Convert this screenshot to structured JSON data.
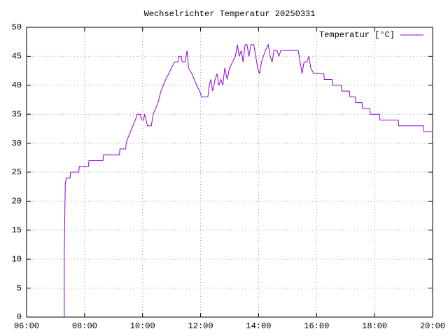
{
  "chart_data": {
    "type": "line",
    "title": "Wechselrichter Temperatur 20250331",
    "x": [
      "07:18",
      "07:18",
      "07:20",
      "07:22",
      "07:30",
      "07:31",
      "07:48",
      "07:49",
      "08:08",
      "08:09",
      "08:38",
      "08:39",
      "09:12",
      "09:13",
      "09:25",
      "09:26",
      "09:30",
      "09:35",
      "09:40",
      "09:45",
      "09:49",
      "09:55",
      "09:58",
      "10:02",
      "10:04",
      "10:07",
      "10:10",
      "10:18",
      "10:22",
      "10:27",
      "10:32",
      "10:38",
      "10:43",
      "10:48",
      "10:54",
      "11:00",
      "11:06",
      "11:13",
      "11:15",
      "11:20",
      "11:22",
      "11:28",
      "11:32",
      "11:35",
      "11:42",
      "11:47",
      "11:52",
      "11:58",
      "12:02",
      "12:15",
      "12:18",
      "12:21",
      "12:25",
      "12:30",
      "12:34",
      "12:38",
      "12:42",
      "12:46",
      "12:50",
      "12:55",
      "13:00",
      "13:06",
      "13:12",
      "13:16",
      "13:20",
      "13:24",
      "13:28",
      "13:32",
      "13:36",
      "13:40",
      "13:44",
      "13:50",
      "13:54",
      "13:58",
      "14:02",
      "14:06",
      "14:10",
      "14:14",
      "14:20",
      "14:24",
      "14:28",
      "14:32",
      "14:38",
      "14:42",
      "14:46",
      "15:22",
      "15:26",
      "15:30",
      "15:34",
      "15:40",
      "15:44",
      "15:48",
      "15:54",
      "16:15",
      "16:16",
      "16:32",
      "16:33",
      "16:51",
      "16:52",
      "17:08",
      "17:09",
      "17:20",
      "17:21",
      "17:34",
      "17:35",
      "17:50",
      "17:51",
      "18:10",
      "18:11",
      "18:49",
      "18:50",
      "19:41",
      "19:42",
      "20:00"
    ],
    "series": [
      {
        "name": "Temperatur [°C]",
        "color": "#9400d3",
        "values": [
          0,
          11,
          23,
          24,
          24,
          25,
          25,
          26,
          26,
          27,
          27,
          28,
          28,
          29,
          29,
          30,
          31,
          32,
          33,
          34,
          35,
          35,
          34,
          34,
          35,
          34,
          33,
          33,
          35,
          36,
          37,
          39,
          40,
          41,
          42,
          43,
          44,
          44,
          45,
          45,
          44,
          44,
          46,
          43,
          42,
          41,
          40,
          39,
          38,
          38,
          40,
          41,
          39,
          41,
          42,
          40,
          41,
          40,
          43,
          41,
          43,
          44,
          45,
          47,
          45,
          46,
          44,
          47,
          47,
          45,
          47,
          47,
          45,
          43,
          42,
          44,
          45,
          46,
          47,
          45,
          44,
          46,
          46,
          45,
          46,
          46,
          44,
          42,
          44,
          44,
          45,
          43,
          42,
          42,
          41,
          41,
          40,
          40,
          39,
          39,
          38,
          38,
          37,
          37,
          36,
          36,
          35,
          35,
          34,
          34,
          33,
          33,
          32,
          32
        ]
      }
    ],
    "xlim": [
      "06:00",
      "20:00"
    ],
    "xticks": [
      "06:00",
      "08:00",
      "10:00",
      "12:00",
      "14:00",
      "16:00",
      "18:00",
      "20:00"
    ],
    "ylim": [
      0,
      50
    ],
    "yticks": [
      0,
      5,
      10,
      15,
      20,
      25,
      30,
      35,
      40,
      45,
      50
    ],
    "grid": true,
    "legend": "top-right"
  }
}
